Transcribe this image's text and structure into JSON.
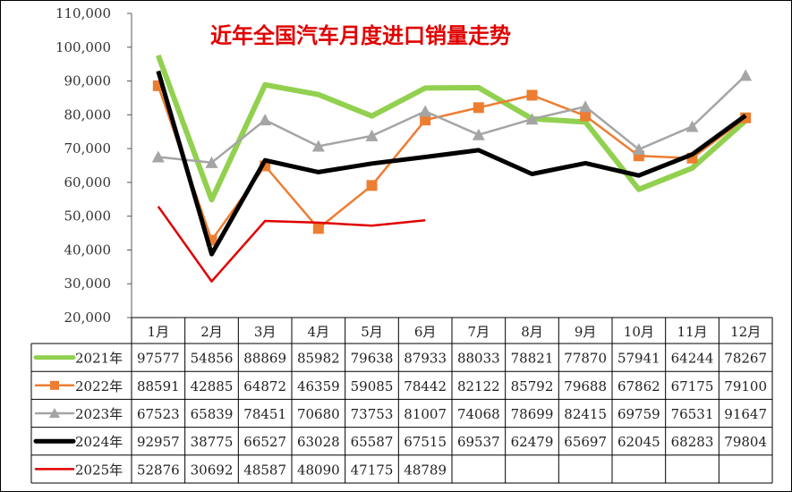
{
  "chart_data": {
    "type": "line",
    "title": "近年全国汽车月度进口销量走势",
    "xlabel": "",
    "ylabel": "",
    "ylim": [
      20000,
      110000
    ],
    "yticks": [
      20000,
      30000,
      40000,
      50000,
      60000,
      70000,
      80000,
      90000,
      100000,
      110000
    ],
    "ytick_labels": [
      "20,000",
      "30,000",
      "40,000",
      "50,000",
      "60,000",
      "70,000",
      "80,000",
      "90,000",
      "100,000",
      "110,000"
    ],
    "grid": false,
    "legend_position": "data-table",
    "categories": [
      "1月",
      "2月",
      "3月",
      "4月",
      "5月",
      "6月",
      "7月",
      "8月",
      "9月",
      "10月",
      "11月",
      "12月"
    ],
    "series": [
      {
        "name": "2021年",
        "color": "#92d050",
        "marker": "none",
        "width": 6,
        "values": [
          97577,
          54856,
          88869,
          85982,
          79638,
          87933,
          88033,
          78821,
          77870,
          57941,
          64244,
          78267
        ]
      },
      {
        "name": "2022年",
        "color": "#ed7d31",
        "marker": "square",
        "width": 2.5,
        "values": [
          88591,
          42885,
          64872,
          46359,
          59085,
          78442,
          82122,
          85792,
          79688,
          67862,
          67175,
          79100
        ]
      },
      {
        "name": "2023年",
        "color": "#a5a5a5",
        "marker": "triangle",
        "width": 2.5,
        "values": [
          67523,
          65839,
          78451,
          70680,
          73753,
          81007,
          74068,
          78699,
          82415,
          69759,
          76531,
          91647
        ]
      },
      {
        "name": "2024年",
        "color": "#000000",
        "marker": "none",
        "width": 5,
        "values": [
          92957,
          38775,
          66527,
          63028,
          65587,
          67515,
          69537,
          62479,
          65697,
          62045,
          68283,
          79804
        ]
      },
      {
        "name": "2025年",
        "color": "#e00000",
        "marker": "none",
        "width": 2.5,
        "values": [
          52876,
          30692,
          48587,
          48090,
          47175,
          48789,
          null,
          null,
          null,
          null,
          null,
          null
        ]
      }
    ]
  }
}
